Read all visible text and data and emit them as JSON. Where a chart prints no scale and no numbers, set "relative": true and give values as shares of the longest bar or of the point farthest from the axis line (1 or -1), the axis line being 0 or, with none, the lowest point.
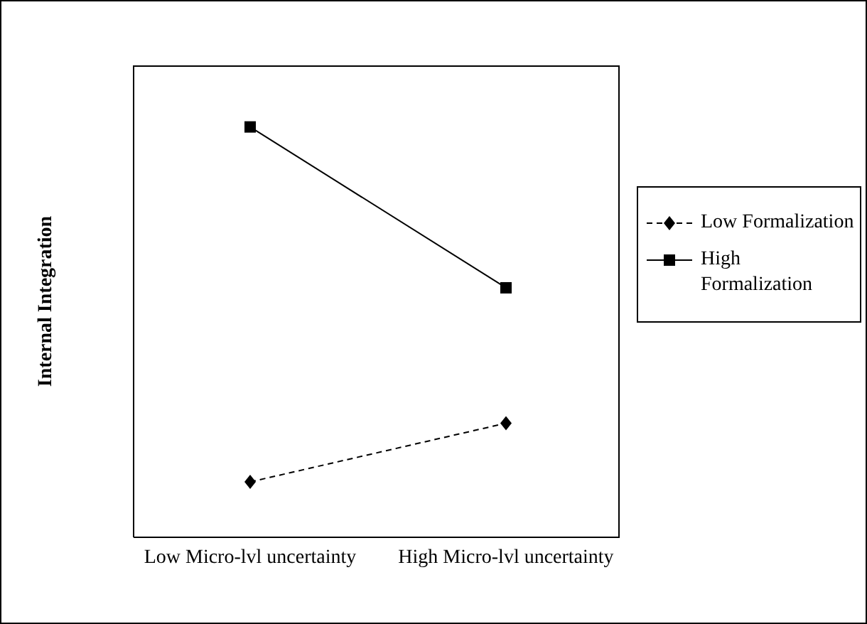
{
  "chart_data": {
    "type": "line",
    "relative": true,
    "ylabel": "Internal Integration",
    "categories": [
      "Low Micro-lvl uncertainty",
      "High Micro-lvl uncertainty"
    ],
    "legend": "right",
    "series": [
      {
        "name": "Low Formalization",
        "color": "#000000",
        "values": [
          0.135,
          0.278
        ],
        "marker": "diamond",
        "line_style": "dashed"
      },
      {
        "name": "High Formalization",
        "color": "#000000",
        "values": [
          1,
          0.608
        ],
        "marker": "square",
        "line_style": "solid"
      }
    ]
  }
}
